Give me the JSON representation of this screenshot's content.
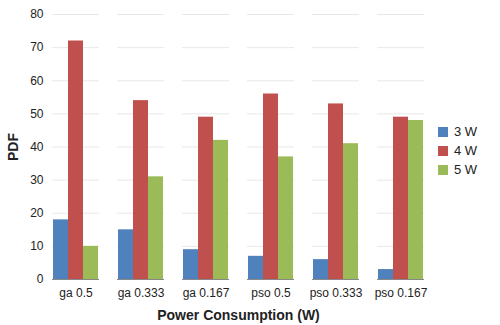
{
  "chart_data": {
    "type": "bar",
    "x_label": "Power Consumption (W)",
    "y_label": "PDF",
    "categories": [
      "ga 0.5",
      "ga 0.333",
      "ga 0.167",
      "pso 0.5",
      "pso 0.333",
      "pso 0.167"
    ],
    "series": [
      {
        "name": "3 W",
        "color": "#4f81bd",
        "values": [
          18,
          15,
          9,
          7,
          6,
          3
        ]
      },
      {
        "name": "4 W",
        "color": "#c0504d",
        "values": [
          72,
          54,
          49,
          56,
          53,
          49
        ]
      },
      {
        "name": "5 W",
        "color": "#9bbb59",
        "values": [
          10,
          31,
          42,
          37,
          41,
          48
        ]
      }
    ],
    "ylim": [
      0,
      80
    ],
    "yticks": [
      0,
      10,
      20,
      30,
      40,
      50,
      60,
      70,
      80
    ],
    "grid": true,
    "legend": "right"
  }
}
